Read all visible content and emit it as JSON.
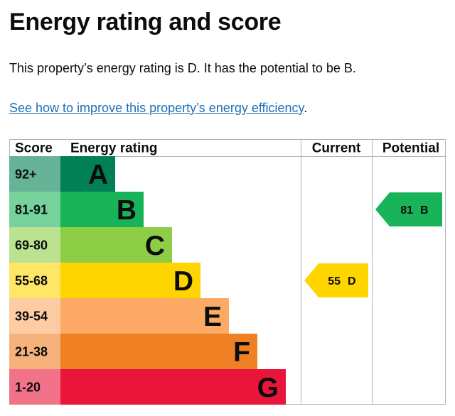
{
  "page": {
    "heading": "Energy rating and score",
    "summary": "This property’s energy rating is D. It has the potential to be B.",
    "improve_link": "See how to improve this property’s energy efficiency",
    "improve_link_suffix": "."
  },
  "chart_data": {
    "type": "bar",
    "headers": {
      "score": "Score",
      "rating": "Energy rating",
      "current": "Current",
      "potential": "Potential"
    },
    "bands": [
      {
        "letter": "A",
        "range": "92+",
        "band_color": "#008054",
        "score_bg": "#66b398"
      },
      {
        "letter": "B",
        "range": "81-91",
        "band_color": "#19b459",
        "score_bg": "#75d29b"
      },
      {
        "letter": "C",
        "range": "69-80",
        "band_color": "#8dce46",
        "score_bg": "#bbe290"
      },
      {
        "letter": "D",
        "range": "55-68",
        "band_color": "#ffd500",
        "score_bg": "#ffe666"
      },
      {
        "letter": "E",
        "range": "39-54",
        "band_color": "#fcaa65",
        "score_bg": "#fdcca3"
      },
      {
        "letter": "F",
        "range": "21-38",
        "band_color": "#ef8023",
        "score_bg": "#f5b37b"
      },
      {
        "letter": "G",
        "range": "1-20",
        "band_color": "#e9153b",
        "score_bg": "#f27389"
      }
    ],
    "current": {
      "score": "55",
      "letter": "D",
      "color": "#ffd500"
    },
    "potential": {
      "score": "81",
      "letter": "B",
      "color": "#19b459"
    }
  }
}
